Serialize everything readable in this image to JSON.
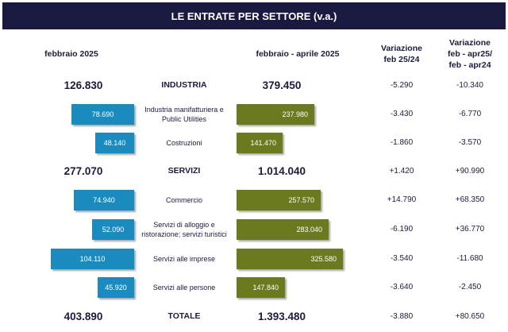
{
  "title": "LE ENTRATE PER SETTORE (v.a.)",
  "headers": {
    "left": "febbraio 2025",
    "mid": "febbraio  - aprile 2025",
    "var1_line1": "Variazione",
    "var1_line2": "feb 25/24",
    "var2_line1": "Variazione",
    "var2_line2": "feb - apr25/",
    "var2_line3": "feb - apr24"
  },
  "colors": {
    "header_bg": "#1a1a40",
    "bar_feb": "#1a8bbf",
    "bar_feb_apr": "#6b7a1f"
  },
  "chart_data": {
    "type": "bar",
    "title": "LE ENTRATE PER SETTORE (v.a.)",
    "series_labels": [
      "febbraio 2025",
      "febbraio  - aprile 2025"
    ],
    "rows": [
      {
        "label": "INDUSTRIA",
        "level": "sector",
        "feb": "126.830",
        "feb_apr": "379.450",
        "var_feb": "-5.290",
        "var_feb_apr": "-10.340"
      },
      {
        "label": "Industria manifatturiera e Public Utilities",
        "level": "sub",
        "feb": "78.690",
        "feb_apr": "237.980",
        "var_feb": "-3.430",
        "var_feb_apr": "-6.770",
        "feb_value": 78690,
        "feb_apr_value": 237980
      },
      {
        "label": "Costruzioni",
        "level": "sub",
        "feb": "48.140",
        "feb_apr": "141.470",
        "var_feb": "-1.860",
        "var_feb_apr": "-3.570",
        "feb_value": 48140,
        "feb_apr_value": 141470
      },
      {
        "label": "SERVIZI",
        "level": "sector",
        "feb": "277.070",
        "feb_apr": "1.014.040",
        "var_feb": "+1.420",
        "var_feb_apr": "+90.990"
      },
      {
        "label": "Commercio",
        "level": "sub",
        "feb": "74.940",
        "feb_apr": "257.570",
        "var_feb": "+14.790",
        "var_feb_apr": "+68.350",
        "feb_value": 74940,
        "feb_apr_value": 257570
      },
      {
        "label": "Servizi di alloggio e ristorazione; servizi turistici",
        "level": "sub",
        "feb": "52.090",
        "feb_apr": "283.040",
        "var_feb": "-6.190",
        "var_feb_apr": "+36.770",
        "feb_value": 52090,
        "feb_apr_value": 283040
      },
      {
        "label": "Servizi alle imprese",
        "level": "sub",
        "feb": "104.110",
        "feb_apr": "325.580",
        "var_feb": "-3.540",
        "var_feb_apr": "-11.680",
        "feb_value": 104110,
        "feb_apr_value": 325580
      },
      {
        "label": "Servizi alle persone",
        "level": "sub",
        "feb": "45.920",
        "feb_apr": "147.840",
        "var_feb": "-3.640",
        "var_feb_apr": "-2.450",
        "feb_value": 45920,
        "feb_apr_value": 147840
      },
      {
        "label": "TOTALE",
        "level": "sector",
        "feb": "403.890",
        "feb_apr": "1.393.480",
        "var_feb": "-3.880",
        "var_feb_apr": "+80.650"
      }
    ]
  }
}
